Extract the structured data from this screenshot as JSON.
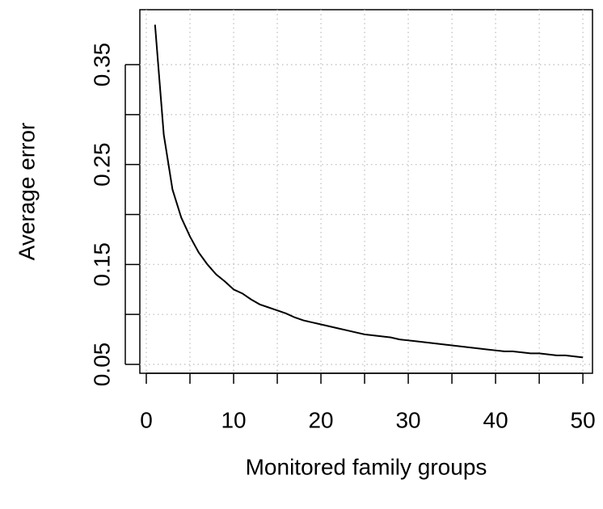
{
  "chart_data": {
    "type": "line",
    "x_label": "Monitored family groups",
    "y_label": "Average error",
    "x": [
      1,
      2,
      3,
      4,
      5,
      6,
      7,
      8,
      9,
      10,
      11,
      12,
      13,
      14,
      15,
      16,
      17,
      18,
      19,
      20,
      21,
      22,
      23,
      24,
      25,
      26,
      27,
      28,
      29,
      30,
      31,
      32,
      33,
      34,
      35,
      36,
      37,
      38,
      39,
      40,
      41,
      42,
      43,
      44,
      45,
      46,
      47,
      48,
      49,
      50
    ],
    "series": [
      {
        "color": "#000000",
        "values": [
          0.39,
          0.28,
          0.225,
          0.197,
          0.178,
          0.162,
          0.15,
          0.14,
          0.133,
          0.125,
          0.121,
          0.115,
          0.11,
          0.107,
          0.104,
          0.101,
          0.097,
          0.094,
          0.092,
          0.09,
          0.088,
          0.086,
          0.084,
          0.082,
          0.08,
          0.079,
          0.078,
          0.077,
          0.075,
          0.074,
          0.073,
          0.072,
          0.071,
          0.07,
          0.069,
          0.068,
          0.067,
          0.066,
          0.065,
          0.064,
          0.063,
          0.063,
          0.062,
          0.061,
          0.061,
          0.06,
          0.059,
          0.059,
          0.058,
          0.057
        ]
      }
    ],
    "xlim": [
      -0.74,
      51.1
    ],
    "ylim": [
      0.0411,
      0.405
    ],
    "xticks": [
      0,
      10,
      20,
      30,
      40,
      50
    ],
    "xminor_ticks": [
      5,
      15,
      25,
      35,
      45
    ],
    "yticks": [
      0.05,
      0.15,
      0.25,
      0.35
    ],
    "yminor_ticks": [
      0.1,
      0.2,
      0.3
    ],
    "grid": true
  }
}
